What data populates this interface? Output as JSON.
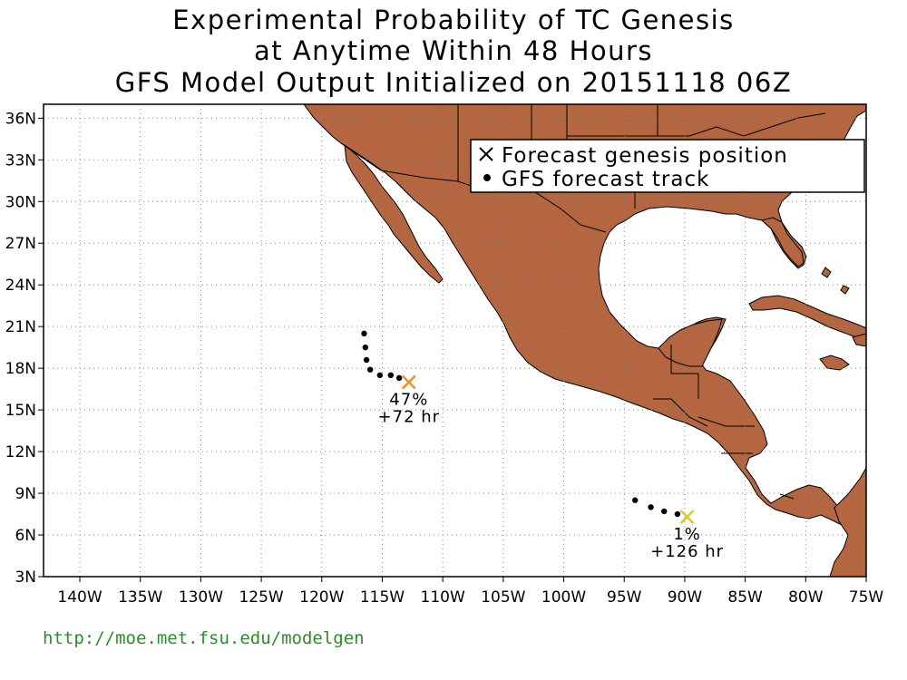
{
  "title": {
    "line1": "Experimental Probability of TC Genesis",
    "line2": "at Anytime Within 48 Hours",
    "line3": "GFS Model Output Initialized on 20151118 06Z"
  },
  "legend": {
    "genesis_label": "Forecast genesis position",
    "track_label": "GFS forecast track"
  },
  "axes": {
    "lon_labels": [
      "140W",
      "135W",
      "130W",
      "125W",
      "120W",
      "115W",
      "110W",
      "105W",
      "100W",
      "95W",
      "90W",
      "85W",
      "80W",
      "75W"
    ],
    "lat_labels": [
      "36N",
      "33N",
      "30N",
      "27N",
      "24N",
      "21N",
      "18N",
      "15N",
      "12N",
      "9N",
      "6N",
      "3N"
    ]
  },
  "map": {
    "lon_range": [
      -143,
      -75
    ],
    "lat_range": [
      3,
      37
    ],
    "grid": "dotted",
    "land_color": "#b36640",
    "ocean_color": "#ffffff"
  },
  "systems": [
    {
      "probability": "47%",
      "lead_time": "+72 hr",
      "genesis": {
        "lon": -112.8,
        "lat": 17.0
      },
      "marker_color": "#f58a2a",
      "track": [
        [
          -116.5,
          20.5
        ],
        [
          -116.4,
          19.5
        ],
        [
          -116.3,
          18.6
        ],
        [
          -116.0,
          17.9
        ],
        [
          -115.2,
          17.5
        ],
        [
          -114.3,
          17.5
        ],
        [
          -113.6,
          17.3
        ]
      ]
    },
    {
      "probability": "1%",
      "lead_time": "+126 hr",
      "genesis": {
        "lon": -89.8,
        "lat": 7.3
      },
      "marker_color": "#d8c83a",
      "track": [
        [
          -94.1,
          8.5
        ],
        [
          -92.8,
          8.0
        ],
        [
          -91.7,
          7.7
        ],
        [
          -90.6,
          7.5
        ]
      ]
    }
  ],
  "footer": {
    "url": "http://moe.met.fsu.edu/modelgen"
  }
}
